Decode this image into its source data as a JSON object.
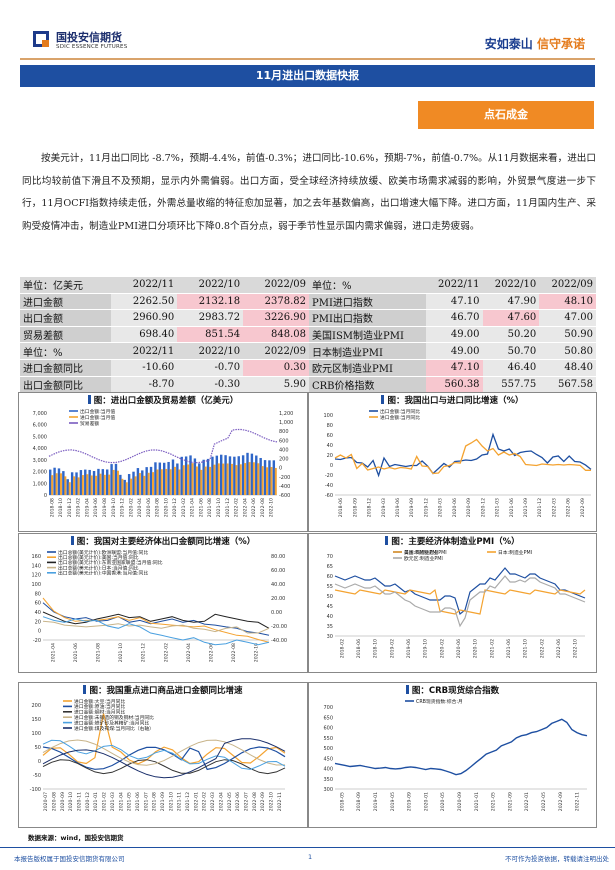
{
  "header": {
    "logo_cn": "国投安信期货",
    "logo_en": "SDIC ESSENCE FUTURES",
    "slogan_a": "安如泰山",
    "slogan_b": "信守承诺"
  },
  "title": "11月进出口数据快报",
  "tag": "点石成金",
  "paragraph": "按美元计，11月出口同比 -8.7%，预期-4.4%，前值-0.3%；进口同比-10.6%，预期-7%，前值-0.7%。从11月数据来看，进出口同比均较前值下滑且不及预期，显示内外需偏弱。出口方面，受全球经济持续放缓、欧美市场需求减弱的影响，外贸景气度进一步下行，11月OCFI指数持续走低，外需总量收缩的特征愈加显著，加之去年基数偏高，出口增速大幅下降。进口方面，11月国内生产、采购受疫情冲击，制造业PMI进口分项环比下降0.8个百分点，弱于季节性显示国内需求偏弱，进口走势疲弱。",
  "table_left": {
    "header1": [
      "单位：亿美元",
      "2022/11",
      "2022/10",
      "2022/09"
    ],
    "rows1": [
      [
        "进口金额",
        "2262.50",
        "2132.18",
        "2378.82"
      ],
      [
        "出口金额",
        "2960.90",
        "2983.72",
        "3226.90"
      ],
      [
        "贸易差额",
        "698.40",
        "851.54",
        "848.08"
      ]
    ],
    "header2": [
      "单位：%",
      "2022/11",
      "2022/10",
      "2022/09"
    ],
    "rows2": [
      [
        "进口金额同比",
        "-10.60",
        "-0.70",
        "0.30"
      ],
      [
        "出口金额同比",
        "-8.70",
        "-0.30",
        "5.90"
      ]
    ]
  },
  "table_right": {
    "header": [
      "单位：%",
      "2022/11",
      "2022/10",
      "2022/09"
    ],
    "rows": [
      [
        "PMI进口指数",
        "47.10",
        "47.90",
        "48.10"
      ],
      [
        "PMI出口指数",
        "46.70",
        "47.60",
        "47.00"
      ],
      [
        "美国ISM制造业PMI",
        "49.00",
        "50.20",
        "50.90"
      ],
      [
        "日本制造业PMI",
        "49.00",
        "50.70",
        "50.80"
      ],
      [
        "欧元区制造业PMI",
        "47.10",
        "46.40",
        "48.40"
      ],
      [
        "CRB价格指数",
        "560.38",
        "557.75",
        "567.58"
      ]
    ]
  },
  "charts": {
    "c1": {
      "title": "图：进出口金额及贸易差额（亿美元）",
      "legend": [
        "出口金额:当月值",
        "进口金额:当月值",
        "贸易差额"
      ],
      "yticks": [
        "7,000",
        "6,000",
        "5,000",
        "4,000",
        "3,000",
        "2,000",
        "1,000",
        "0"
      ],
      "yticks_r": [
        "1,200",
        "1,000",
        "800",
        "600",
        "400",
        "200",
        "0",
        "-200",
        "-400",
        "-600"
      ],
      "xticks": [
        "2018-08",
        "2018-10",
        "2018-12",
        "2019-02",
        "2019-04",
        "2019-06",
        "2019-08",
        "2019-10",
        "2019-12",
        "2020-02",
        "2020-04",
        "2020-06",
        "2020-08",
        "2020-10",
        "2020-12",
        "2021-02",
        "2021-04",
        "2021-06",
        "2021-08",
        "2021-10",
        "2021-12",
        "2022-02",
        "2022-04",
        "2022-06",
        "2022-08",
        "2022-10"
      ]
    },
    "c2": {
      "title": "图：我国出口与进口同比增速（%）",
      "legend": [
        "出口金额:当月同比",
        "进口金额:当月同比"
      ],
      "yticks": [
        "100",
        "80",
        "60",
        "40",
        "20",
        "0",
        "-20",
        "-40",
        "-60"
      ],
      "xticks": [
        "2018-06",
        "2018-09",
        "2018-12",
        "2019-03",
        "2019-06",
        "2019-09",
        "2019-12",
        "2020-03",
        "2020-06",
        "2020-09",
        "2020-12",
        "2021-03",
        "2021-06",
        "2021-09",
        "2021-12",
        "2022-03",
        "2022-06",
        "2022-09"
      ]
    },
    "c3": {
      "title": "图：我国对主要经济体出口金额同比增速（%）",
      "legend": [
        "出口总额(美元计价):欧洲联盟:当月值:同比",
        "出口总额(美元计价):美国:当月值:同比",
        "出口总额(美元计价):东南亚国家联盟:当月值:同比",
        "出口总额(美元计价):日本:当月值:同比",
        "出口总额(美元计价):中国香港:当月值:同比"
      ],
      "yticks": [
        "160",
        "140",
        "120",
        "100",
        "80",
        "60",
        "40",
        "20",
        "0",
        "-20"
      ],
      "yticks_r": [
        "80.00",
        "60.00",
        "40.00",
        "20.00",
        "0.00",
        "-20.00",
        "-40.00"
      ],
      "xticks": [
        "2021-04",
        "2021-06",
        "2021-08",
        "2021-10",
        "2021-12",
        "2022-02",
        "2022-04",
        "2022-06",
        "2022-08",
        "2022-10"
      ]
    },
    "c4": {
      "title": "图：主要经济体制造业PMI（%）",
      "legend": [
        "美国:ISM制造业PMI",
        "日本:制造业PMI",
        "欧元区:制造业PMI"
      ],
      "yticks": [
        "70",
        "65",
        "60",
        "55",
        "50",
        "45",
        "40",
        "35",
        "30"
      ],
      "xticks": [
        "2018-02",
        "2018-06",
        "2018-10",
        "2019-02",
        "2019-06",
        "2019-10",
        "2020-02",
        "2020-06",
        "2020-10",
        "2021-02",
        "2021-06",
        "2021-10",
        "2022-02",
        "2022-06",
        "2022-10"
      ]
    },
    "c5": {
      "title": "图：我国重点进口商品进口金额同比增速",
      "legend": [
        "进口金额:大豆:当月同比",
        "进口金额:原油:当月同比",
        "进口金额:钢材:当月同比",
        "进口金额:未锻造的铜及铜材:当月同比",
        "进口金额:铁矿砂及其精矿:当月同比",
        "进口金额:煤及褐煤:当月同比（右轴）"
      ],
      "yticks": [
        "200",
        "150",
        "100",
        "50",
        "0",
        "-50",
        "-100"
      ],
      "xticks": [
        "2020-07",
        "2020-08",
        "2020-09",
        "2020-10",
        "2020-11",
        "2020-12",
        "2021-01",
        "2021-02",
        "2021-03",
        "2021-04",
        "2021-05",
        "2021-06",
        "2021-07",
        "2021-08",
        "2021-09",
        "2021-10",
        "2021-11",
        "2021-12",
        "2022-01",
        "2022-02",
        "2022-03",
        "2022-04",
        "2022-05",
        "2022-06",
        "2022-07",
        "2022-08",
        "2022-09",
        "2022-10",
        "2022-11"
      ]
    },
    "c6": {
      "title": "图：CRB现货综合指数",
      "legend": [
        "CRB现货指数:综合:月"
      ],
      "yticks": [
        "700",
        "650",
        "600",
        "550",
        "500",
        "450",
        "400",
        "350",
        "300"
      ],
      "xticks": [
        "2018-05",
        "2018-09",
        "2019-01",
        "2019-05",
        "2019-09",
        "2020-01",
        "2020-05",
        "2020-09",
        "2021-01",
        "2021-05",
        "2021-09",
        "2022-01",
        "2022-05",
        "2022-09",
        "2022-11"
      ]
    }
  },
  "source": "数据来源：wind，国投安信期货",
  "footer": {
    "left": "本报告版权属于国投安信期货有限公司",
    "page": "1",
    "right": "不可作为投资依据，转载请注明出处"
  },
  "colors": {
    "blue": "#1e4fa1",
    "orange": "#f08a24",
    "pink": "#f7c7cf"
  }
}
